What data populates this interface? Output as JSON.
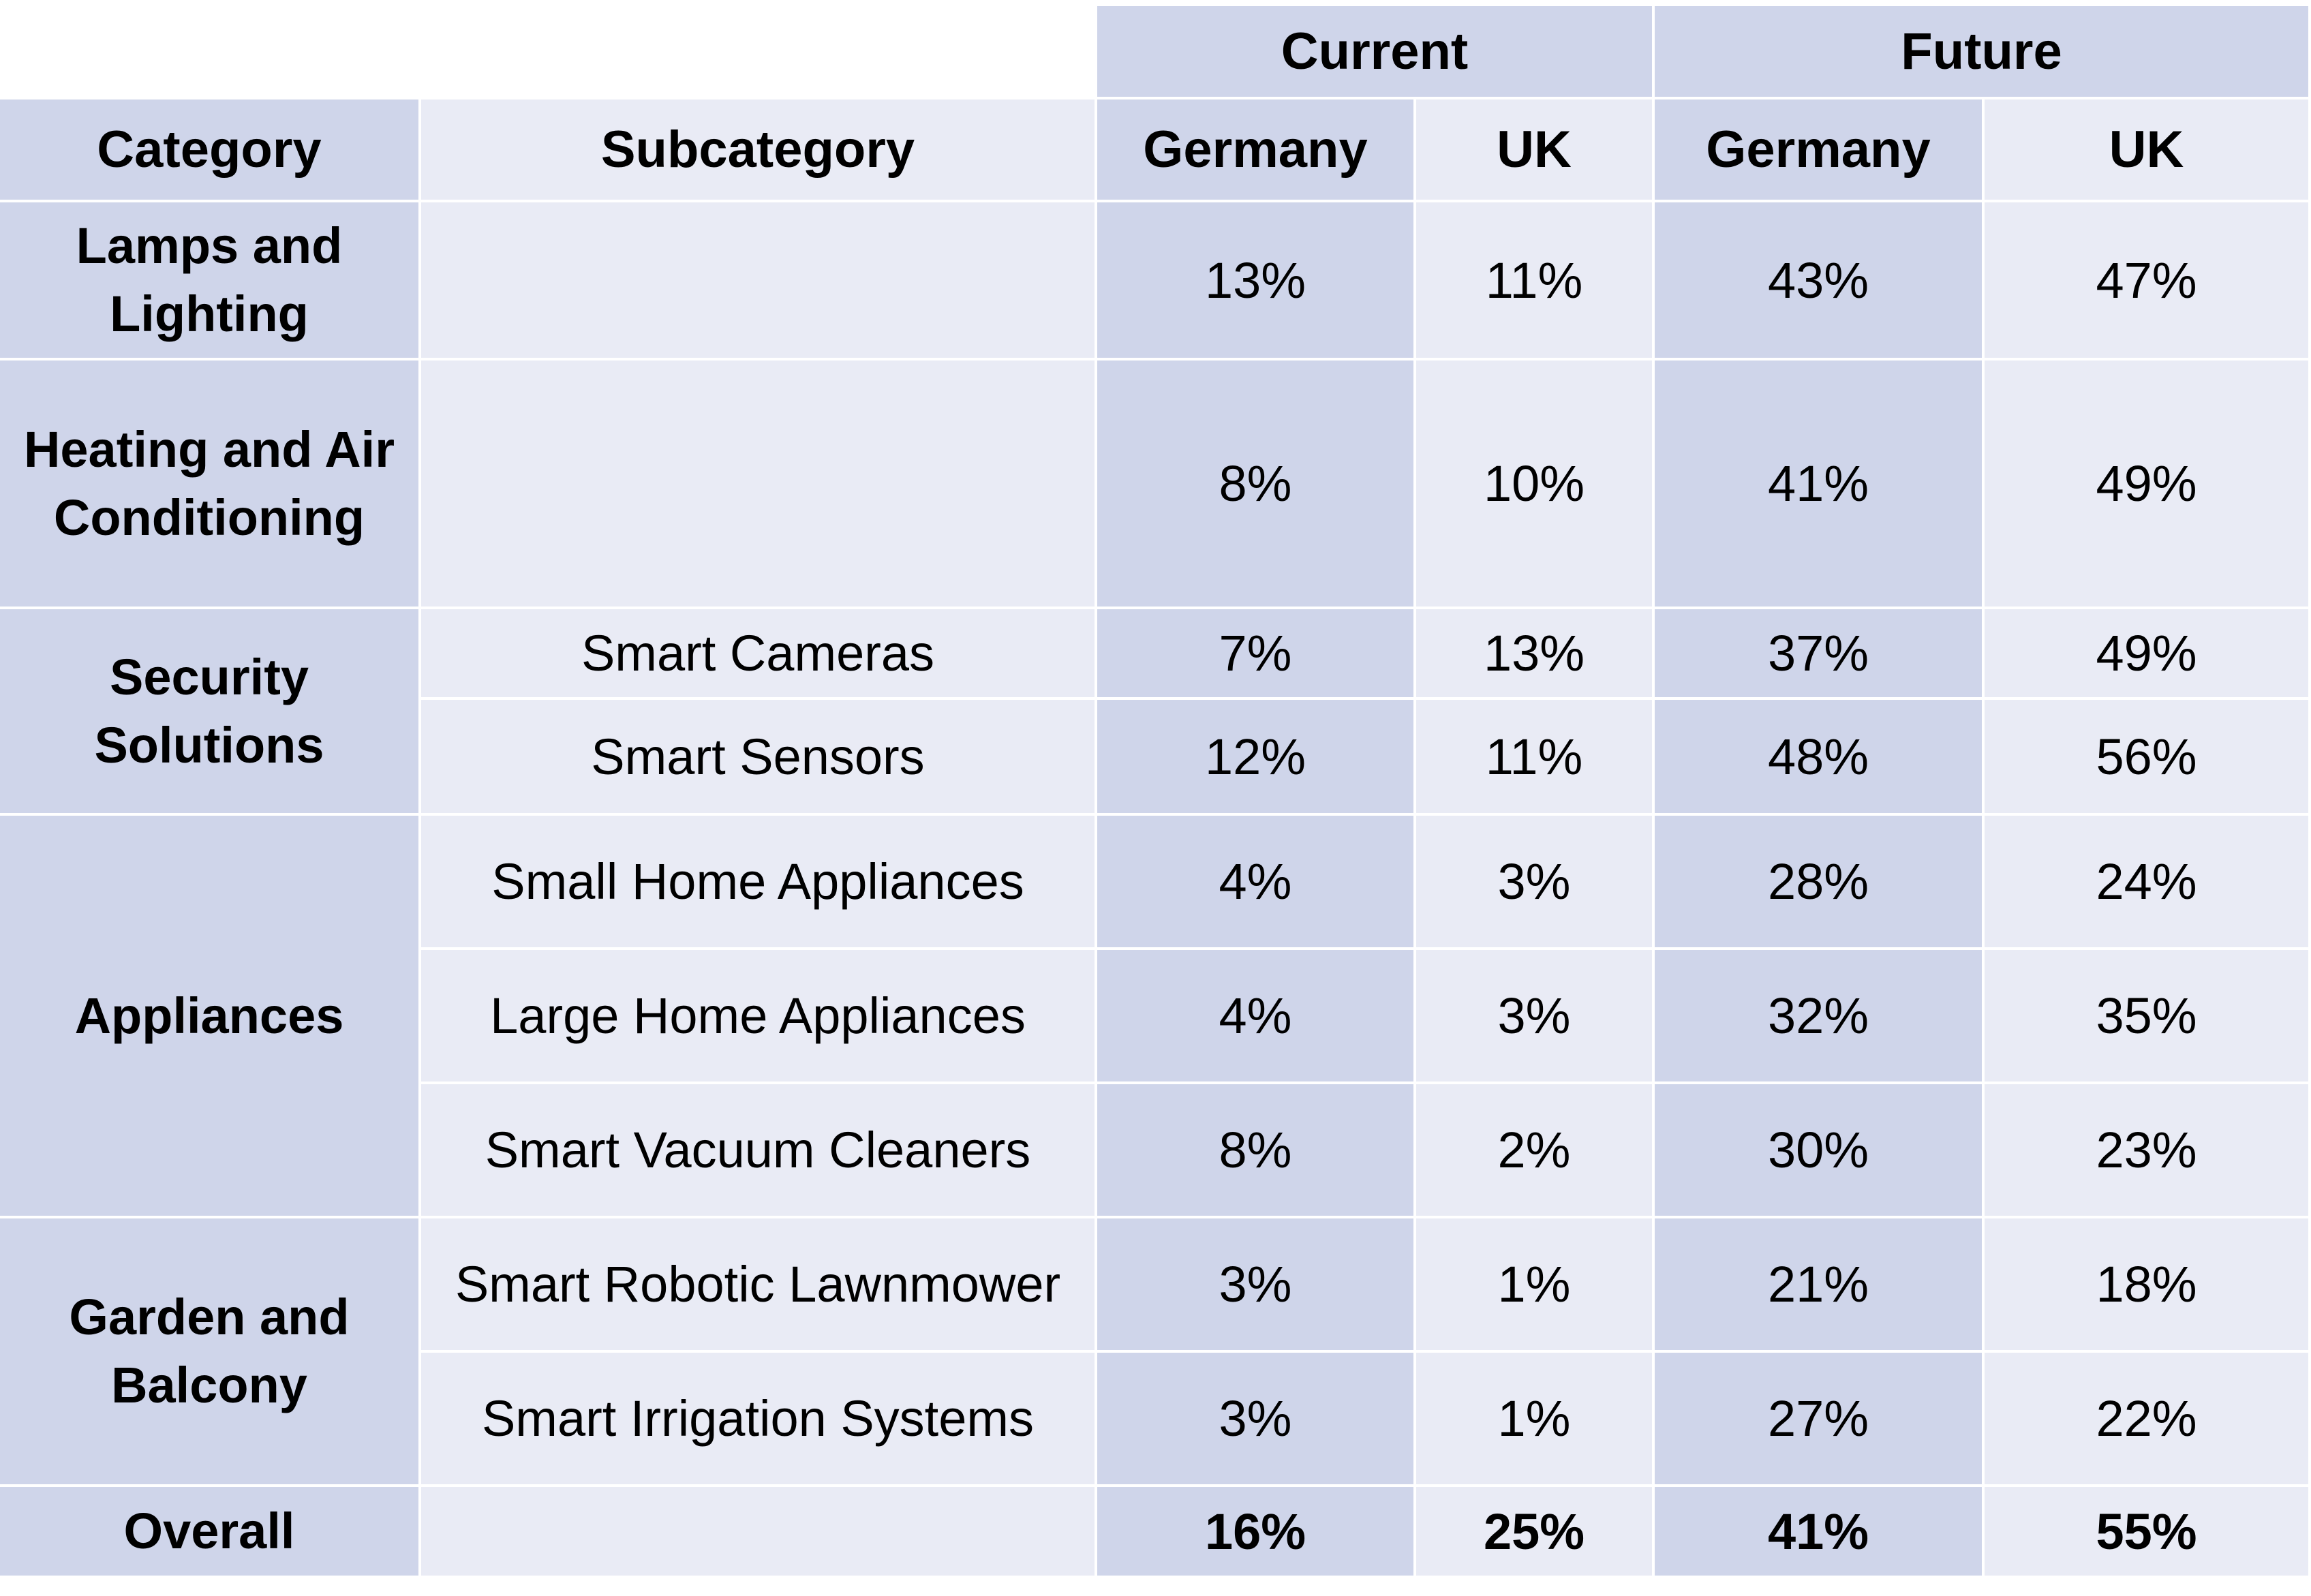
{
  "chart_data": {
    "type": "table",
    "group_headers": [
      "Current",
      "Future"
    ],
    "columns": [
      "Category",
      "Subcategory",
      "Germany",
      "UK",
      "Germany",
      "UK"
    ],
    "rows": [
      {
        "category": "Lamps and Lighting",
        "subcategory": "",
        "values": [
          "13%",
          "11%",
          "43%",
          "47%"
        ]
      },
      {
        "category": "Heating and Air Conditioning",
        "subcategory": "",
        "values": [
          "8%",
          "10%",
          "41%",
          "49%"
        ]
      },
      {
        "category": "Security Solutions",
        "subcategory": "Smart Cameras",
        "values": [
          "7%",
          "13%",
          "37%",
          "49%"
        ]
      },
      {
        "category": "Security Solutions",
        "subcategory": "Smart Sensors",
        "values": [
          "12%",
          "11%",
          "48%",
          "56%"
        ]
      },
      {
        "category": "Appliances",
        "subcategory": "Small Home Appliances",
        "values": [
          "4%",
          "3%",
          "28%",
          "24%"
        ]
      },
      {
        "category": "Appliances",
        "subcategory": "Large Home Appliances",
        "values": [
          "4%",
          "3%",
          "32%",
          "35%"
        ]
      },
      {
        "category": "Appliances",
        "subcategory": "Smart Vacuum Cleaners",
        "values": [
          "8%",
          "2%",
          "30%",
          "23%"
        ]
      },
      {
        "category": "Garden and Balcony",
        "subcategory": "Smart Robotic Lawnmower",
        "values": [
          "3%",
          "1%",
          "21%",
          "18%"
        ]
      },
      {
        "category": "Garden and Balcony",
        "subcategory": "Smart Irrigation Systems",
        "values": [
          "3%",
          "1%",
          "27%",
          "22%"
        ]
      },
      {
        "category": "Overall",
        "subcategory": "",
        "values": [
          "16%",
          "25%",
          "41%",
          "55%"
        ]
      }
    ],
    "categories": [
      "Lamps and Lighting",
      "Heating and Air Conditioning",
      "Security Solutions",
      "Appliances",
      "Garden and Balcony",
      "Overall"
    ],
    "colors": {
      "header_dark": "#cfd5ea",
      "header_light": "#e9ebf5"
    }
  }
}
